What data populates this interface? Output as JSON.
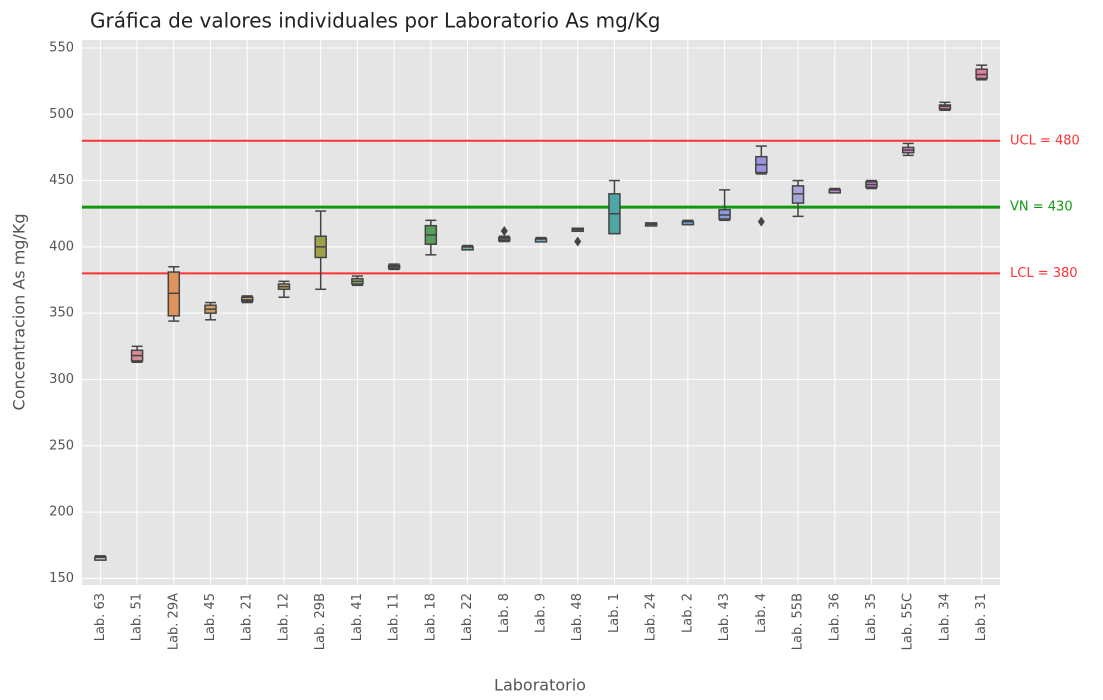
{
  "chart_data": {
    "type": "box",
    "title": "Gráfica de valores individuales por Laboratorio As mg/Kg",
    "x_label": "Laboratorio",
    "y_label": "Concentracion As mg/Kg",
    "categories": [
      "Lab. 63",
      "Lab. 51",
      "Lab. 29A",
      "Lab. 45",
      "Lab. 21",
      "Lab. 12",
      "Lab. 29B",
      "Lab. 41",
      "Lab. 11",
      "Lab. 18",
      "Lab. 22",
      "Lab. 8",
      "Lab. 9",
      "Lab. 48",
      "Lab. 1",
      "Lab. 24",
      "Lab. 2",
      "Lab. 43",
      "Lab. 4",
      "Lab. 55B",
      "Lab. 36",
      "Lab. 35",
      "Lab. 55C",
      "Lab. 34",
      "Lab. 31"
    ],
    "boxes": [
      {
        "min": 165,
        "q1": 165,
        "median": 166,
        "q3": 166,
        "max": 167,
        "outliers": []
      },
      {
        "min": 313,
        "q1": 314,
        "median": 318,
        "q3": 322,
        "max": 325,
        "outliers": []
      },
      {
        "min": 344,
        "q1": 348,
        "median": 365,
        "q3": 381,
        "max": 385,
        "outliers": []
      },
      {
        "min": 345,
        "q1": 350,
        "median": 353,
        "q3": 356,
        "max": 358,
        "outliers": []
      },
      {
        "min": 358,
        "q1": 359,
        "median": 360,
        "q3": 362,
        "max": 363,
        "outliers": []
      },
      {
        "min": 362,
        "q1": 368,
        "median": 370,
        "q3": 372,
        "max": 374,
        "outliers": []
      },
      {
        "min": 368,
        "q1": 392,
        "median": 400,
        "q3": 408,
        "max": 427,
        "outliers": []
      },
      {
        "min": 371,
        "q1": 372,
        "median": 374,
        "q3": 376,
        "max": 378,
        "outliers": []
      },
      {
        "min": 383,
        "q1": 384,
        "median": 385,
        "q3": 386,
        "max": 387,
        "outliers": []
      },
      {
        "min": 394,
        "q1": 402,
        "median": 409,
        "q3": 416,
        "max": 420,
        "outliers": []
      },
      {
        "min": 399,
        "q1": 399,
        "median": 400,
        "q3": 400,
        "max": 401,
        "outliers": []
      },
      {
        "min": 404,
        "q1": 405,
        "median": 406,
        "q3": 407,
        "max": 408,
        "outliers": [
          412
        ]
      },
      {
        "min": 405,
        "q1": 405,
        "median": 406,
        "q3": 406,
        "max": 407,
        "outliers": []
      },
      {
        "min": 413,
        "q1": 413,
        "median": 413,
        "q3": 414,
        "max": 414,
        "outliers": [
          404
        ]
      },
      {
        "min": 410,
        "q1": 410,
        "median": 425,
        "q3": 440,
        "max": 450,
        "outliers": []
      },
      {
        "min": 416,
        "q1": 416,
        "median": 417,
        "q3": 418,
        "max": 418,
        "outliers": []
      },
      {
        "min": 418,
        "q1": 418,
        "median": 419,
        "q3": 419,
        "max": 420,
        "outliers": []
      },
      {
        "min": 420,
        "q1": 421,
        "median": 424,
        "q3": 428,
        "max": 443,
        "outliers": []
      },
      {
        "min": 455,
        "q1": 456,
        "median": 462,
        "q3": 468,
        "max": 476,
        "outliers": [
          419
        ]
      },
      {
        "min": 423,
        "q1": 433,
        "median": 440,
        "q3": 446,
        "max": 450,
        "outliers": []
      },
      {
        "min": 442,
        "q1": 442,
        "median": 443,
        "q3": 443,
        "max": 444,
        "outliers": []
      },
      {
        "min": 444,
        "q1": 445,
        "median": 447,
        "q3": 449,
        "max": 450,
        "outliers": []
      },
      {
        "min": 469,
        "q1": 471,
        "median": 473,
        "q3": 475,
        "max": 478,
        "outliers": []
      },
      {
        "min": 503,
        "q1": 504,
        "median": 506,
        "q3": 507,
        "max": 509,
        "outliers": []
      },
      {
        "min": 526,
        "q1": 527,
        "median": 530,
        "q3": 534,
        "max": 537,
        "outliers": []
      }
    ],
    "colors": [
      "#c0c0c0",
      "#d98c93",
      "#e0935a",
      "#d49a60",
      "#c9a36b",
      "#bba86a",
      "#a0a04a",
      "#8fae6a",
      "#7cb27a",
      "#5a9e5e",
      "#6cb59a",
      "#6bb3ab",
      "#6bb1b8",
      "#6bafc4",
      "#4ea6a6",
      "#6aa9d2",
      "#7aa2d8",
      "#8a9bdc",
      "#9a93de",
      "#a9a6da",
      "#b88ad8",
      "#c884d0",
      "#d27fc0",
      "#d87eae",
      "#e07f9c"
    ],
    "reference_lines": [
      {
        "value": 480,
        "label": "UCL = 480",
        "color": "#ff3333"
      },
      {
        "value": 430,
        "label": "VN = 430",
        "color": "#119911"
      },
      {
        "value": 380,
        "label": "LCL = 380",
        "color": "#ff3333"
      }
    ],
    "ylim": [
      145,
      556
    ],
    "yticks": [
      150,
      200,
      250,
      300,
      350,
      400,
      450,
      500,
      550
    ],
    "grid": true
  }
}
